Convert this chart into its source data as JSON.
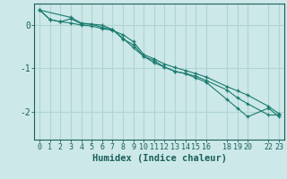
{
  "title": "",
  "xlabel": "Humidex (Indice chaleur)",
  "ylabel": "",
  "bg_color": "#cce8e8",
  "grid_color": "#b0d4d4",
  "line_color": "#1a7a6e",
  "xlim": [
    -0.5,
    23.5
  ],
  "ylim": [
    -2.65,
    0.5
  ],
  "xticks": [
    0,
    1,
    2,
    3,
    4,
    5,
    6,
    7,
    8,
    9,
    10,
    11,
    12,
    13,
    14,
    15,
    16,
    18,
    19,
    20,
    22,
    23
  ],
  "yticks": [
    0,
    -1,
    -2
  ],
  "line1_x": [
    0,
    1,
    2,
    3,
    4,
    5,
    6,
    7,
    8,
    9,
    10,
    11,
    12,
    13,
    14,
    15,
    16,
    18,
    19,
    20,
    22,
    23
  ],
  "line1_y": [
    0.35,
    0.13,
    0.08,
    0.05,
    0.0,
    -0.02,
    -0.08,
    -0.12,
    -0.22,
    -0.38,
    -0.68,
    -0.78,
    -0.9,
    -0.98,
    -1.05,
    -1.12,
    -1.2,
    -1.42,
    -1.52,
    -1.62,
    -1.88,
    -2.05
  ],
  "line2_x": [
    0,
    1,
    2,
    3,
    4,
    5,
    6,
    7,
    8,
    9,
    10,
    11,
    12,
    13,
    14,
    15,
    16,
    18,
    19,
    20,
    22,
    23
  ],
  "line2_y": [
    0.35,
    0.13,
    0.08,
    0.15,
    0.03,
    0.02,
    -0.05,
    -0.1,
    -0.3,
    -0.52,
    -0.72,
    -0.82,
    -0.97,
    -1.07,
    -1.12,
    -1.18,
    -1.28,
    -1.5,
    -1.68,
    -1.82,
    -2.08,
    -2.08
  ],
  "line3_x": [
    0,
    3,
    4,
    6,
    7,
    8,
    9,
    10,
    11,
    12,
    13,
    14,
    15,
    16,
    18,
    19,
    20,
    22,
    23
  ],
  "line3_y": [
    0.35,
    0.18,
    0.05,
    0.0,
    -0.1,
    -0.32,
    -0.45,
    -0.72,
    -0.87,
    -0.97,
    -1.07,
    -1.12,
    -1.22,
    -1.32,
    -1.72,
    -1.92,
    -2.12,
    -1.92,
    -2.12
  ],
  "font_color": "#1a5f5a",
  "tick_fontsize": 6,
  "label_fontsize": 7.5
}
